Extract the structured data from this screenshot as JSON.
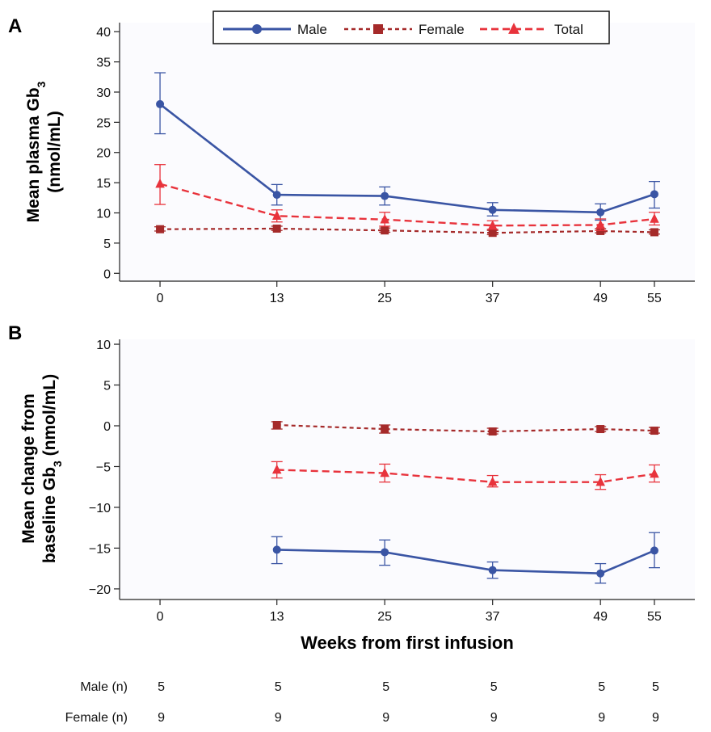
{
  "colors": {
    "male": "#3a55a4",
    "female": "#a52a2a",
    "total": "#e8333c",
    "axis": "#222222",
    "plot_bg": "#fbfbfe"
  },
  "legend": {
    "placement": "top",
    "items": [
      {
        "key": "male",
        "label": "Male",
        "marker": "circle",
        "line": "solid"
      },
      {
        "key": "female",
        "label": "Female",
        "marker": "square",
        "line": "dotted"
      },
      {
        "key": "total",
        "label": "Total",
        "marker": "triangle",
        "line": "dashed"
      }
    ]
  },
  "chart_data": [
    {
      "panel": "A",
      "type": "line",
      "xlabel": "",
      "ylabel_line1": "Mean plasma Gb",
      "ylabel_sub": "3",
      "ylabel_line2": "(nmol/mL)",
      "x": [
        0,
        13,
        25,
        37,
        49,
        55
      ],
      "xticks": [
        0,
        13,
        25,
        37,
        49,
        55
      ],
      "yticks": [
        0,
        5,
        10,
        15,
        20,
        25,
        30,
        35,
        40
      ],
      "xlim": [
        -4.5,
        59.5
      ],
      "ylim": [
        -1.3,
        41.5
      ],
      "series": [
        {
          "key": "male",
          "name": "Male",
          "values": [
            28,
            13,
            12.8,
            10.5,
            10.1,
            13.1
          ],
          "err_low": [
            23.1,
            11.3,
            11.3,
            9.5,
            8.8,
            10.8
          ],
          "err_high": [
            33.2,
            14.7,
            14.3,
            11.7,
            11.5,
            15.2
          ]
        },
        {
          "key": "female",
          "name": "Female",
          "values": [
            7.3,
            7.4,
            7.1,
            6.7,
            7.0,
            6.8
          ],
          "err_low": [
            7.0,
            7.1,
            6.8,
            6.4,
            6.7,
            6.5
          ],
          "err_high": [
            7.7,
            7.8,
            7.5,
            7.1,
            7.4,
            7.2
          ]
        },
        {
          "key": "total",
          "name": "Total",
          "values": [
            14.8,
            9.5,
            8.9,
            7.9,
            8.0,
            9.0
          ],
          "err_low": [
            11.4,
            8.5,
            7.8,
            7.3,
            7.1,
            8.0
          ],
          "err_high": [
            18.0,
            10.5,
            10.1,
            8.7,
            9.0,
            10.1
          ]
        }
      ]
    },
    {
      "panel": "B",
      "type": "line",
      "xlabel": "Weeks from first infusion",
      "ylabel_line1": "Mean change from",
      "ylabel_line2a": "baseline Gb",
      "ylabel_sub": "3",
      "ylabel_line2b": " (nmol/mL)",
      "x": [
        13,
        25,
        37,
        49,
        55
      ],
      "xticks": [
        0,
        13,
        25,
        37,
        49,
        55
      ],
      "yticks": [
        -20,
        -15,
        -10,
        -5,
        0,
        5,
        10
      ],
      "xlim": [
        -4.5,
        59.5
      ],
      "ylim": [
        -21.3,
        10.6
      ],
      "series": [
        {
          "key": "male",
          "name": "Male",
          "values": [
            -15.2,
            -15.5,
            -17.7,
            -18.1,
            -15.3
          ],
          "err_low": [
            -16.9,
            -17.1,
            -18.7,
            -19.3,
            -17.4
          ],
          "err_high": [
            -13.6,
            -14.0,
            -16.7,
            -16.9,
            -13.1
          ]
        },
        {
          "key": "female",
          "name": "Female",
          "values": [
            0.1,
            -0.4,
            -0.7,
            -0.4,
            -0.6
          ],
          "err_low": [
            -0.4,
            -0.9,
            -1.0,
            -0.7,
            -0.9
          ],
          "err_high": [
            0.5,
            0.1,
            -0.3,
            -0.1,
            -0.2
          ]
        },
        {
          "key": "total",
          "name": "Total",
          "values": [
            -5.4,
            -5.8,
            -6.9,
            -6.9,
            -5.9
          ],
          "err_low": [
            -6.4,
            -6.9,
            -7.5,
            -7.8,
            -6.9
          ],
          "err_high": [
            -4.4,
            -4.7,
            -6.1,
            -6.0,
            -4.8
          ]
        }
      ]
    }
  ],
  "n_table": {
    "x": [
      0,
      13,
      25,
      37,
      49,
      55
    ],
    "rows": [
      {
        "label": "Male (n)",
        "values": [
          "5",
          "5",
          "5",
          "5",
          "5",
          "5"
        ]
      },
      {
        "label": "Female (n)",
        "values": [
          "9",
          "9",
          "9",
          "9",
          "9",
          "9"
        ]
      }
    ]
  }
}
